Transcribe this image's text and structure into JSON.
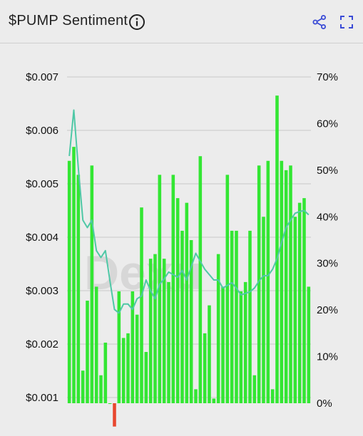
{
  "header": {
    "title": "$PUMP Sentiment"
  },
  "icons": {
    "info": "info-icon",
    "share": "share-icon",
    "expand": "expand-icon"
  },
  "colors": {
    "bar": "#33e633",
    "negative_bar": "#e8472f",
    "line": "#4fc8a6",
    "grid": "#c9c9c9",
    "icon_accent": "#3a4bd6"
  },
  "chart_data": {
    "type": "bar",
    "title": "$PUMP Sentiment",
    "xlabel": "",
    "ylabel": "",
    "y_left": {
      "ticks": [
        "$0.007",
        "$0.006",
        "$0.005",
        "$0.004",
        "$0.003",
        "$0.002",
        "$0.001"
      ],
      "lim": [
        0.001,
        0.007
      ]
    },
    "y_right": {
      "ticks": [
        "70%",
        "60%",
        "50%",
        "40%",
        "30%",
        "20%",
        "10%",
        "0%"
      ],
      "lim": [
        0,
        70
      ]
    },
    "grid": true,
    "watermark": "Dexu",
    "series": [
      {
        "type": "bar",
        "axis": "right",
        "unit": "%",
        "values": [
          52,
          55,
          49,
          7,
          22,
          51,
          25,
          6,
          13,
          0,
          -5,
          24,
          14,
          15,
          24,
          19,
          42,
          11,
          31,
          32,
          49,
          31,
          26,
          49,
          44,
          37,
          43,
          35,
          3,
          53,
          15,
          21,
          1,
          32,
          25,
          49,
          37,
          37,
          24,
          26,
          37,
          6,
          51,
          40,
          52,
          3,
          66,
          52,
          50,
          51,
          40,
          43,
          44,
          25
        ]
      },
      {
        "type": "line",
        "axis": "left",
        "unit": "$",
        "values": [
          0.00552,
          0.00638,
          0.0053,
          0.00432,
          0.00418,
          0.00432,
          0.00375,
          0.00362,
          0.00375,
          0.00318,
          0.00265,
          0.00258,
          0.00275,
          0.00275,
          0.00265,
          0.00285,
          0.0029,
          0.0032,
          0.003,
          0.00285,
          0.00312,
          0.00322,
          0.00335,
          0.0033,
          0.00325,
          0.00338,
          0.0032,
          0.00345,
          0.0037,
          0.00355,
          0.0034,
          0.0033,
          0.0032,
          0.0032,
          0.00305,
          0.0031,
          0.00315,
          0.00305,
          0.00292,
          0.00295,
          0.00298,
          0.00305,
          0.00318,
          0.00328,
          0.00328,
          0.0034,
          0.0036,
          0.0039,
          0.00418,
          0.00432,
          0.00445,
          0.00448,
          0.0045,
          0.00442
        ]
      }
    ]
  }
}
